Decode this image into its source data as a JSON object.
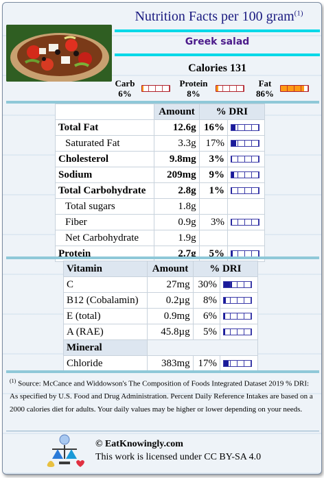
{
  "header": {
    "title": "Nutrition Facts per 100 gram",
    "title_note": "(1)",
    "food_name": "Greek salad",
    "calories": "Calories 131"
  },
  "macros": [
    {
      "name": "Carb",
      "pct": "6%",
      "fraction": 0.06
    },
    {
      "name": "Protein",
      "pct": "8%",
      "fraction": 0.08
    },
    {
      "name": "Fat",
      "pct": "86%",
      "fraction": 0.86
    }
  ],
  "nutrients": {
    "col_amount": "Amount",
    "col_dri": "% DRI",
    "rows": [
      {
        "name": "Total Fat",
        "amount": "12.6g",
        "dri": "16%",
        "fraction": 0.16
      },
      {
        "name": "Saturated Fat",
        "amount": "3.3g",
        "dri": "17%",
        "fraction": 0.17
      },
      {
        "name": "Cholesterol",
        "amount": "9.8mg",
        "dri": "3%",
        "fraction": 0.03
      },
      {
        "name": "Sodium",
        "amount": "209mg",
        "dri": "9%",
        "fraction": 0.09
      },
      {
        "name": "Total Carbohydrate",
        "amount": "2.8g",
        "dri": "1%",
        "fraction": 0.01
      },
      {
        "name": "Total sugars",
        "amount": "1.8g",
        "dri": ""
      },
      {
        "name": "Fiber",
        "amount": "0.9g",
        "dri": "3%",
        "fraction": 0.03
      },
      {
        "name": "Net Carbohydrate",
        "amount": "1.9g",
        "dri": ""
      },
      {
        "name": "Protein",
        "amount": "2.7g",
        "dri": "5%",
        "fraction": 0.05
      }
    ]
  },
  "vitamins": {
    "col_name": "Vitamin",
    "col_amount": "Amount",
    "col_dri": "% DRI",
    "rows": [
      {
        "name": "C",
        "amount": "27mg",
        "dri": "30%",
        "fraction": 0.3
      },
      {
        "name": "B12 (Cobalamin)",
        "amount": "0.2µg",
        "dri": "8%",
        "fraction": 0.08
      },
      {
        "name": "E (total)",
        "amount": "0.9mg",
        "dri": "6%",
        "fraction": 0.06
      },
      {
        "name": "A (RAE)",
        "amount": "45.8µg",
        "dri": "5%",
        "fraction": 0.05
      }
    ],
    "mineral_header": "Mineral",
    "minerals": [
      {
        "name": "Chloride",
        "amount": "383mg",
        "dri": "17%",
        "fraction": 0.17
      }
    ]
  },
  "footnote": {
    "marker": "(1)",
    "text": "Source: McCance and Widdowson's The Composition of Foods Integrated Dataset 2019 % DRI: As specified by U.S. Food and Drug Administration. Percent Daily Reference Intakes are based on a 2000 calories diet for adults. Your daily values may be higher or lower depending on your needs."
  },
  "footer": {
    "site": "© EatKnowingly.com",
    "license": "This work is licensed under CC BY-SA 4.0"
  },
  "colors": {
    "title": "#1a1a80",
    "food_name": "#4b1a8a",
    "accent_cyan": "#00d8e8",
    "macro_fill": "#ff9a14",
    "dri_fill": "#1a1a9a"
  }
}
